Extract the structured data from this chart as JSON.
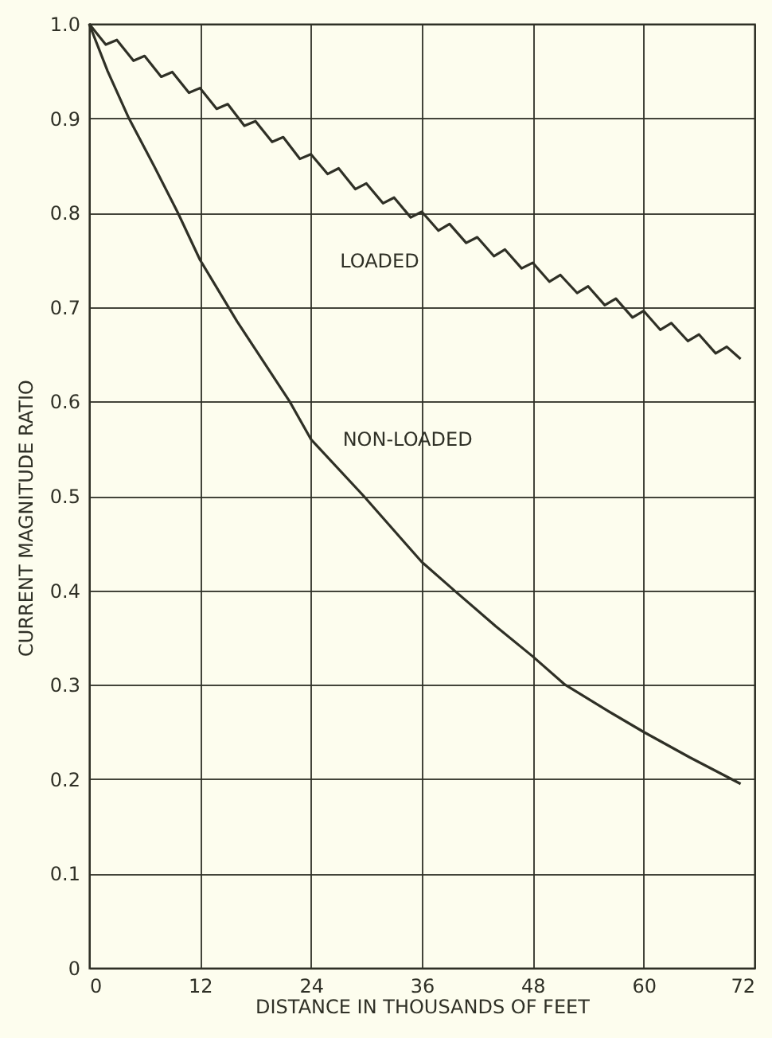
{
  "chart_data": {
    "type": "line",
    "xlabel": "DISTANCE IN THOUSANDS OF FEET",
    "ylabel": "CURRENT MAGNITUDE RATIO",
    "xlim": [
      0,
      72
    ],
    "xticks": [
      0,
      12,
      24,
      36,
      48,
      60,
      72
    ],
    "ylim": [
      0,
      1
    ],
    "yticks": [
      0,
      0.1,
      0.2,
      0.3,
      0.4,
      0.5,
      0.6,
      0.7,
      0.8,
      0.9,
      {
        "value": 1,
        "label": "1.0"
      }
    ],
    "grid": true,
    "line_style": "solid",
    "marker": "none",
    "series": [
      {
        "name": "LOADED",
        "color": "#2f3026",
        "x": [
          0,
          1.8,
          3,
          4.8,
          6,
          7.8,
          9,
          10.8,
          12,
          13.8,
          15,
          16.8,
          18,
          19.8,
          21,
          22.8,
          24,
          25.8,
          27,
          28.8,
          30,
          31.8,
          33,
          34.8,
          36,
          37.8,
          39,
          40.8,
          42,
          43.8,
          45,
          46.8,
          48,
          49.8,
          51,
          52.8,
          54,
          55.8,
          57,
          58.8,
          60,
          61.8,
          63,
          64.8,
          66,
          67.8,
          69,
          70.5
        ],
        "values": [
          1.0,
          0.978,
          0.983,
          0.961,
          0.966,
          0.944,
          0.949,
          0.927,
          0.932,
          0.91,
          0.915,
          0.892,
          0.897,
          0.875,
          0.88,
          0.857,
          0.862,
          0.841,
          0.847,
          0.825,
          0.831,
          0.81,
          0.816,
          0.795,
          0.801,
          0.781,
          0.788,
          0.768,
          0.774,
          0.754,
          0.761,
          0.741,
          0.747,
          0.727,
          0.734,
          0.715,
          0.722,
          0.702,
          0.709,
          0.689,
          0.696,
          0.676,
          0.683,
          0.664,
          0.671,
          0.651,
          0.658,
          0.645
        ]
      },
      {
        "name": "NON-LOADED",
        "color": "#2f3026",
        "x": [
          0,
          2,
          4.3,
          7,
          9.6,
          12,
          16,
          21.7,
          24,
          29.7,
          36,
          39.5,
          44,
          48,
          51.5,
          56,
          60,
          65,
          70.5
        ],
        "values": [
          1.0,
          0.95,
          0.9,
          0.85,
          0.8,
          0.75,
          0.685,
          0.6,
          0.56,
          0.5,
          0.43,
          0.4,
          0.362,
          0.33,
          0.3,
          0.273,
          0.25,
          0.223,
          0.195
        ]
      }
    ]
  }
}
